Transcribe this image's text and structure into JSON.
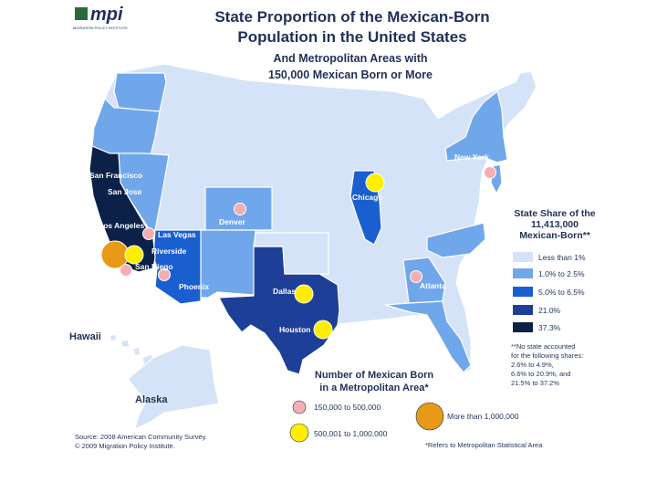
{
  "logo": {
    "mark": "mpi",
    "subtitle": "MIGRATION POLICY INSTITUTE"
  },
  "title": {
    "line1": "State Proportion of the Mexican-Born",
    "line2": "Population in the United States"
  },
  "subtitle": {
    "line1": "And Metropolitan Areas with",
    "line2": "150,000 Mexican Born or More"
  },
  "colors": {
    "tier1": "#d4e3f7",
    "tier2": "#70a7ea",
    "tier3": "#1a5fd0",
    "tier4": "#1e3f98",
    "tier5": "#0b2148",
    "circle_small": "#f4aeb4",
    "circle_medium": "#ffee00",
    "circle_large": "#e79a16",
    "ink": "#1f3158"
  },
  "regions": {
    "hawaii": "Hawaii",
    "alaska": "Alaska"
  },
  "cities": [
    {
      "name": "New York",
      "size": "small"
    },
    {
      "name": "Chicago",
      "size": "medium"
    },
    {
      "name": "San Francisco",
      "size": "none"
    },
    {
      "name": "San Jose",
      "size": "none"
    },
    {
      "name": "Denver",
      "size": "small"
    },
    {
      "name": "Los Angeles",
      "size": "large"
    },
    {
      "name": "Las Vegas",
      "size": "small"
    },
    {
      "name": "Riverside",
      "size": "medium"
    },
    {
      "name": "San Diego",
      "size": "small"
    },
    {
      "name": "Phoenix",
      "size": "small"
    },
    {
      "name": "Dallas",
      "size": "medium"
    },
    {
      "name": "Atlanta",
      "size": "small"
    },
    {
      "name": "Houston",
      "size": "medium"
    }
  ],
  "legend": {
    "heading_line1": "State Share of the",
    "heading_line2": "11,413,000",
    "heading_line3": "Mexican-Born**",
    "items": [
      "Less than 1%",
      "1.0% to 2.5%",
      "5.0% to 6.5%",
      "21.0%",
      "37.3%"
    ],
    "note_line1": "**No state accounted",
    "note_line2": "for the following shares:",
    "note_line3": "2.6% to 4.9%,",
    "note_line4": "6.6% to 20.9%, and",
    "note_line5": "21.5% to 37.2%"
  },
  "circle_legend": {
    "heading_line1": "Number of Mexican Born",
    "heading_line2": "in a Metropolitan Area*",
    "small": "150,000 to 500,000",
    "medium": "500,001 to 1,000,000",
    "large": "More than 1,000,000",
    "footnote": "*Refers to Metropolitan Statistical Area"
  },
  "source": {
    "line1": "Source: 2008 American Community Survey.",
    "line2": "© 2009 Migration Policy Institute."
  }
}
